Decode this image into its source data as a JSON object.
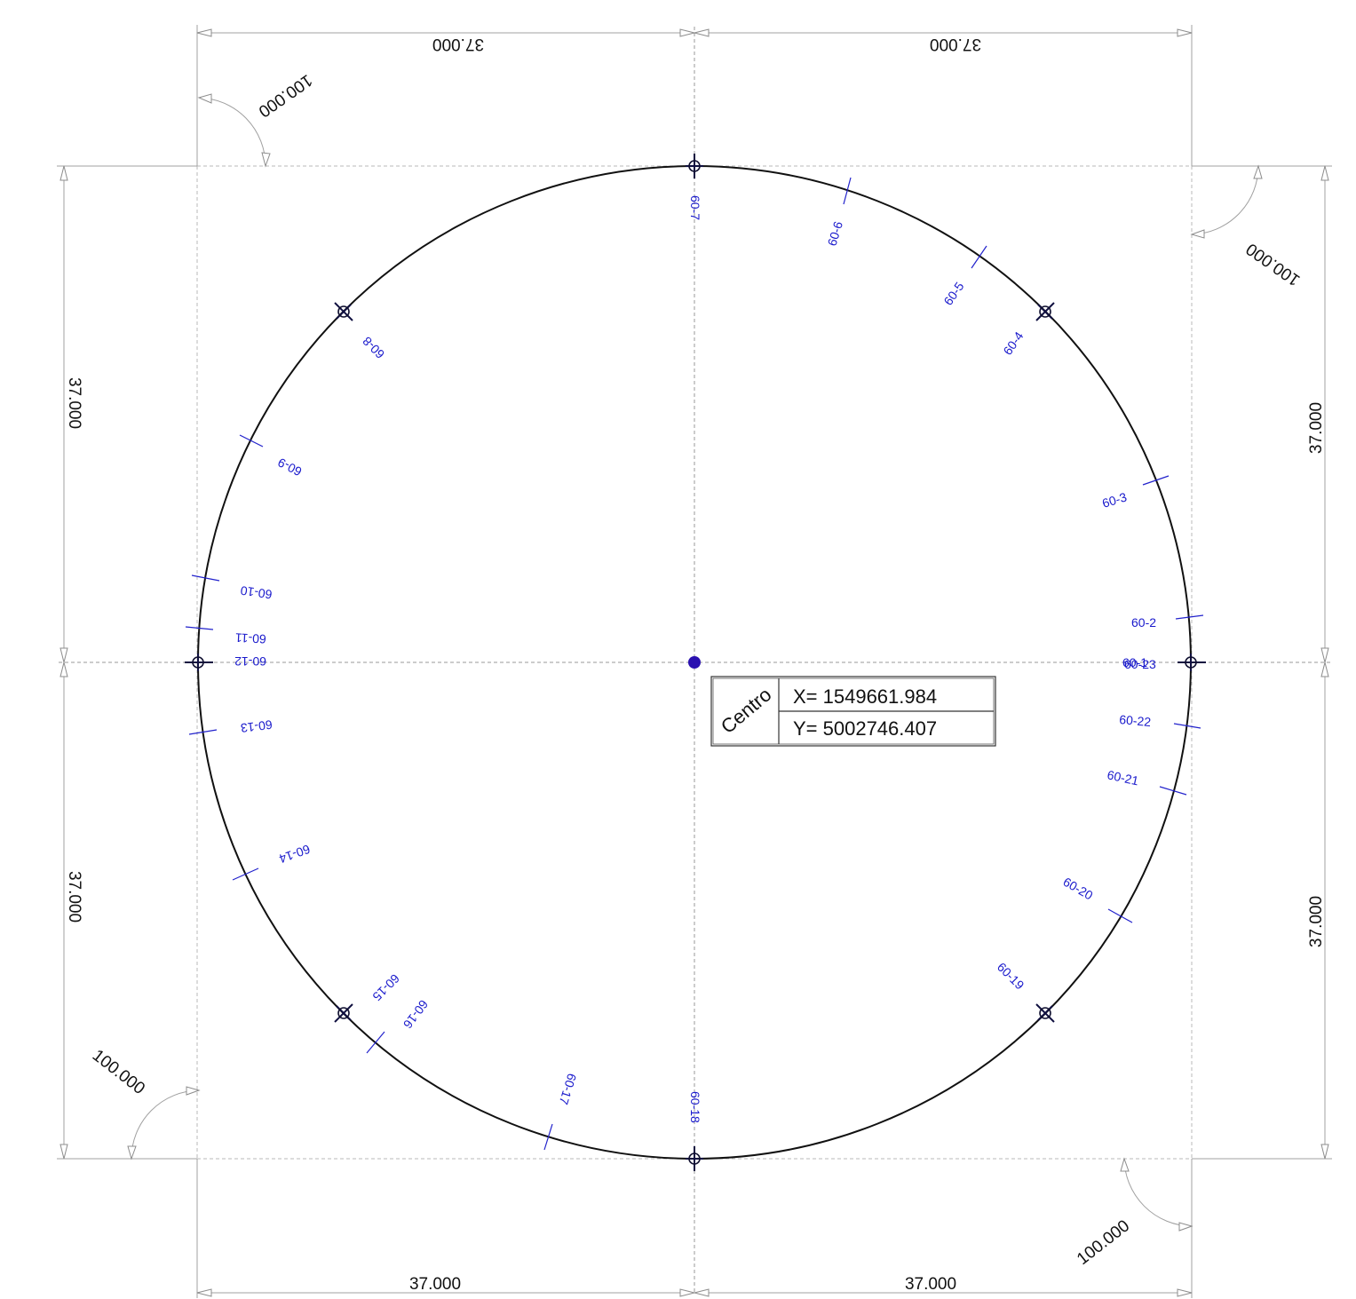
{
  "dimensions": {
    "top_left": "37.000",
    "top_right": "37.000",
    "bottom_left": "37.000",
    "bottom_right": "37.000",
    "left_upper": "37.000",
    "left_lower": "37.000",
    "right_upper": "37.000",
    "right_lower": "37.000",
    "angle_top_left": "100.000",
    "angle_top_right": "100.000",
    "angle_bottom_left": "100.000",
    "angle_bottom_right": "100.000"
  },
  "center_table": {
    "label": "Centro",
    "x_value": "X= 1549661.984",
    "y_value": "Y= 5002746.407"
  },
  "point_labels": {
    "p1": "60-1",
    "p2": "60-2",
    "p3": "60-3",
    "p4": "60-4",
    "p5": "60-5",
    "p6": "60-6",
    "p7": "60-7",
    "p8": "60-8",
    "p9": "60-9",
    "p10": "60-10",
    "p11": "60-11",
    "p12": "60-12",
    "p13": "60-13",
    "p14": "60-14",
    "p15": "60-15",
    "p16": "60-16",
    "p17": "60-17",
    "p18": "60-18",
    "p19": "60-19",
    "p20": "60-20",
    "p21": "60-21",
    "p22": "60-22",
    "p23": "60-23"
  },
  "colors": {
    "label_blue": "#1a1acc",
    "circle": "#111111",
    "center_dot": "#2a10b0"
  }
}
